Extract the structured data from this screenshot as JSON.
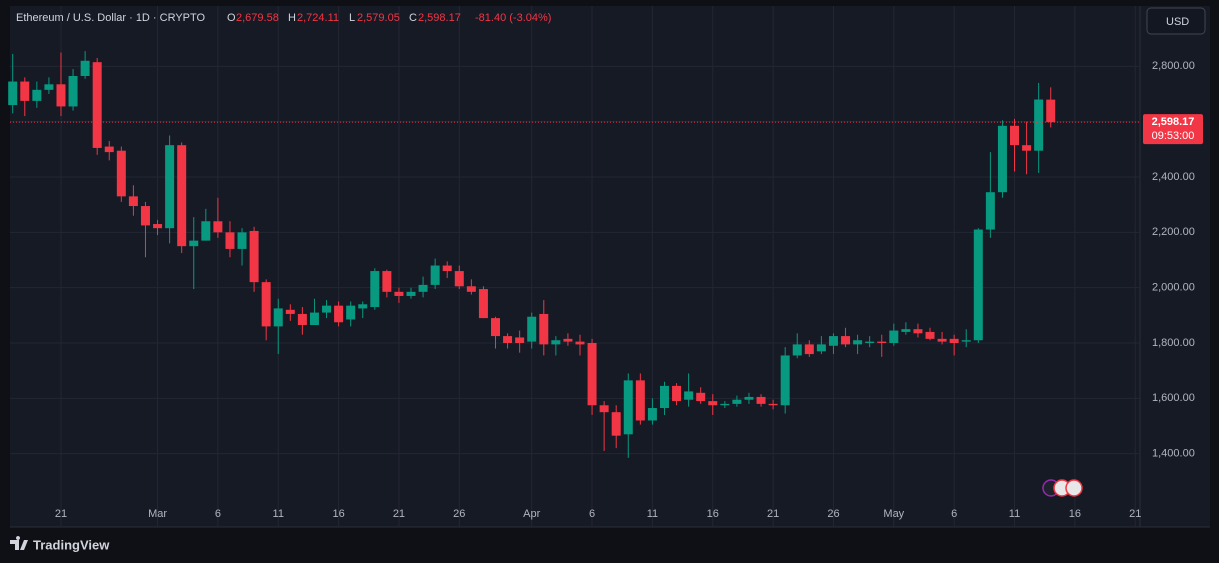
{
  "chart_data": {
    "type": "candlestick",
    "header": {
      "title": "Ethereum / U.S. Dollar · 1D · CRYPTO",
      "ohlc": [
        {
          "key": "O",
          "value": "2,679.58"
        },
        {
          "key": "H",
          "value": "2,724.11"
        },
        {
          "key": "L",
          "value": "2,579.05"
        },
        {
          "key": "C",
          "value": "2,598.17"
        }
      ],
      "change": "-81.40 (-3.04%)"
    },
    "currency": "USD",
    "brand": "TradingView",
    "up_color": "#089981",
    "down_color": "#f23645",
    "categories": [
      "Feb 17",
      "Feb 18",
      "Feb 19",
      "Feb 20",
      "Feb 21",
      "Feb 22",
      "Feb 23",
      "Feb 24",
      "Feb 25",
      "Feb 26",
      "Feb 27",
      "Feb 28",
      "Mar 1",
      "Mar 2",
      "Mar 3",
      "Mar 4",
      "Mar 5",
      "Mar 6",
      "Mar 7",
      "Mar 8",
      "Mar 9",
      "Mar 10",
      "Mar 11",
      "Mar 12",
      "Mar 13",
      "Mar 14",
      "Mar 15",
      "Mar 16",
      "Mar 17",
      "Mar 18",
      "Mar 19",
      "Mar 20",
      "Mar 21",
      "Mar 22",
      "Mar 23",
      "Mar 24",
      "Mar 25",
      "Mar 26",
      "Mar 27",
      "Mar 28",
      "Mar 29",
      "Mar 30",
      "Mar 31",
      "Apr 1",
      "Apr 2",
      "Apr 3",
      "Apr 4",
      "Apr 5",
      "Apr 6",
      "Apr 7",
      "Apr 8",
      "Apr 9",
      "Apr 10",
      "Apr 11",
      "Apr 12",
      "Apr 13",
      "Apr 14",
      "Apr 15",
      "Apr 16",
      "Apr 17",
      "Apr 18",
      "Apr 19",
      "Apr 20",
      "Apr 21",
      "Apr 22",
      "Apr 23",
      "Apr 24",
      "Apr 25",
      "Apr 26",
      "Apr 27",
      "Apr 28",
      "Apr 29",
      "Apr 30",
      "May 1",
      "May 2",
      "May 3",
      "May 4",
      "May 5",
      "May 6",
      "May 7",
      "May 8",
      "May 9",
      "May 10",
      "May 11",
      "May 12",
      "May 13",
      "May 14"
    ],
    "open": [
      2660,
      2745,
      2675,
      2715,
      2735,
      2655,
      2765,
      2815,
      2510,
      2495,
      2330,
      2295,
      2230,
      2215,
      2515,
      2150,
      2170,
      2240,
      2200,
      2140,
      2205,
      2020,
      1860,
      1920,
      1905,
      1865,
      1910,
      1935,
      1885,
      1925,
      1930,
      2060,
      1985,
      1970,
      1985,
      2010,
      2080,
      2060,
      2005,
      1995,
      1890,
      1825,
      1820,
      1805,
      1905,
      1795,
      1815,
      1805,
      1800,
      1575,
      1550,
      1470,
      1665,
      1520,
      1565,
      1645,
      1595,
      1620,
      1590,
      1575,
      1580,
      1595,
      1605,
      1580,
      1575,
      1755,
      1795,
      1770,
      1790,
      1825,
      1795,
      1800,
      1805,
      1800,
      1840,
      1850,
      1840,
      1815,
      1815,
      1805,
      1810,
      2210,
      2345,
      2585,
      2515,
      2495,
      2679.58
    ],
    "high": [
      2845,
      2760,
      2745,
      2760,
      2850,
      2790,
      2855,
      2830,
      2530,
      2510,
      2370,
      2310,
      2245,
      2550,
      2525,
      2255,
      2285,
      2325,
      2240,
      2215,
      2220,
      2030,
      1960,
      1940,
      1930,
      1960,
      1955,
      1950,
      1950,
      1950,
      2070,
      2065,
      2000,
      2000,
      2040,
      2105,
      2095,
      2080,
      2030,
      2005,
      1895,
      1835,
      1845,
      1910,
      1955,
      1825,
      1835,
      1830,
      1815,
      1590,
      1575,
      1690,
      1690,
      1600,
      1660,
      1655,
      1690,
      1640,
      1615,
      1590,
      1610,
      1620,
      1615,
      1595,
      1785,
      1835,
      1810,
      1825,
      1835,
      1855,
      1830,
      1825,
      1830,
      1870,
      1875,
      1870,
      1855,
      1840,
      1830,
      1850,
      2215,
      2490,
      2605,
      2610,
      2600,
      2740,
      2724.11
    ],
    "low": [
      2630,
      2620,
      2650,
      2700,
      2620,
      2640,
      2755,
      2480,
      2460,
      2310,
      2260,
      2110,
      2190,
      2160,
      2125,
      1995,
      2170,
      2180,
      2110,
      2080,
      1985,
      1810,
      1760,
      1880,
      1830,
      1865,
      1890,
      1860,
      1860,
      1890,
      1920,
      1965,
      1945,
      1960,
      1965,
      1995,
      2035,
      1995,
      1975,
      1890,
      1780,
      1780,
      1765,
      1780,
      1755,
      1755,
      1790,
      1755,
      1540,
      1410,
      1420,
      1385,
      1505,
      1505,
      1540,
      1575,
      1570,
      1580,
      1540,
      1565,
      1570,
      1580,
      1570,
      1560,
      1545,
      1745,
      1750,
      1760,
      1760,
      1785,
      1760,
      1785,
      1750,
      1790,
      1830,
      1820,
      1810,
      1795,
      1755,
      1785,
      1800,
      2180,
      2325,
      2420,
      2410,
      2415,
      2579.05
    ],
    "close": [
      2745,
      2675,
      2715,
      2735,
      2655,
      2765,
      2820,
      2505,
      2490,
      2330,
      2295,
      2225,
      2215,
      2515,
      2150,
      2170,
      2240,
      2200,
      2140,
      2200,
      2020,
      1860,
      1925,
      1905,
      1865,
      1910,
      1935,
      1875,
      1935,
      1940,
      2060,
      1985,
      1970,
      1985,
      2010,
      2080,
      2060,
      2005,
      1985,
      1890,
      1825,
      1800,
      1800,
      1895,
      1795,
      1810,
      1805,
      1795,
      1575,
      1550,
      1465,
      1665,
      1520,
      1565,
      1645,
      1590,
      1625,
      1590,
      1575,
      1580,
      1595,
      1605,
      1580,
      1575,
      1755,
      1795,
      1760,
      1795,
      1825,
      1795,
      1810,
      1805,
      1800,
      1845,
      1850,
      1835,
      1815,
      1805,
      1800,
      1810,
      2210,
      2345,
      2585,
      2515,
      2495,
      2680,
      2598.17
    ],
    "ylim": [
      1135,
      3018
    ],
    "yticks": [
      {
        "value": 1400,
        "label": "1,400.00"
      },
      {
        "value": 1600,
        "label": "1,600.00"
      },
      {
        "value": 1800,
        "label": "1,800.00"
      },
      {
        "value": 2000,
        "label": "2,000.00"
      },
      {
        "value": 2200,
        "label": "2,200.00"
      },
      {
        "value": 2400,
        "label": "2,400.00"
      },
      {
        "value": 2600,
        "label": "2,600.00"
      },
      {
        "value": 2800,
        "label": "2,800.00"
      }
    ],
    "xticks": [
      {
        "value": "Feb 21",
        "label": "21"
      },
      {
        "value": "Mar 1",
        "label": "Mar"
      },
      {
        "value": "Mar 6",
        "label": "6"
      },
      {
        "value": "Mar 11",
        "label": "11"
      },
      {
        "value": "Mar 16",
        "label": "16"
      },
      {
        "value": "Mar 21",
        "label": "21"
      },
      {
        "value": "Mar 26",
        "label": "26"
      },
      {
        "value": "Apr 1",
        "label": "Apr"
      },
      {
        "value": "Apr 6",
        "label": "6"
      },
      {
        "value": "Apr 11",
        "label": "11"
      },
      {
        "value": "Apr 16",
        "label": "16"
      },
      {
        "value": "Apr 21",
        "label": "21"
      },
      {
        "value": "Apr 26",
        "label": "26"
      },
      {
        "value": "May 1",
        "label": "May"
      },
      {
        "value": "May 6",
        "label": "6"
      },
      {
        "value": "May 11",
        "label": "11"
      },
      {
        "value": "May 16",
        "label": "16"
      },
      {
        "value": "May 21",
        "label": "21"
      }
    ],
    "last_price": {
      "value": 2598.17,
      "label": "2,598.17"
    },
    "countdown": "09:53:00",
    "grid": true
  }
}
